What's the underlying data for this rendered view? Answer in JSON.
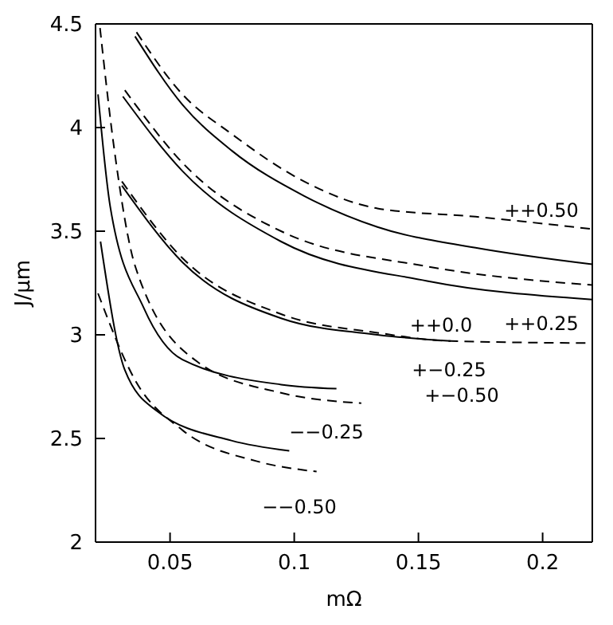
{
  "chart_data": {
    "type": "line",
    "xlabel": "mΩ",
    "ylabel": "J/μm",
    "xlim": [
      0.02,
      0.22
    ],
    "ylim": [
      2,
      4.5
    ],
    "xticks": [
      0.05,
      0.1,
      0.15,
      0.2
    ],
    "yticks": [
      2,
      2.5,
      3,
      3.5,
      4,
      4.5
    ],
    "grid": false,
    "legend": false,
    "marker": "none",
    "series": [
      {
        "color": "#000000",
        "line_style": "solid",
        "x": [
          0.0359,
          0.055,
          0.0747,
          0.104,
          0.1335,
          0.173,
          0.22
        ],
        "values": [
          4.44,
          4.11,
          3.89,
          3.67,
          3.52,
          3.42,
          3.34
        ]
      },
      {
        "color": "#000000",
        "line_style": "dashed",
        "x": [
          0.0365,
          0.055,
          0.0747,
          0.104,
          0.1335,
          0.173,
          0.22
        ],
        "values": [
          4.46,
          4.16,
          3.97,
          3.74,
          3.61,
          3.57,
          3.51
        ]
      },
      {
        "color": "#000000",
        "line_style": "solid",
        "x": [
          0.031,
          0.055,
          0.0947,
          0.1535,
          0.22
        ],
        "values": [
          4.15,
          3.79,
          3.45,
          3.26,
          3.17
        ]
      },
      {
        "color": "#000000",
        "line_style": "dashed",
        "x": [
          0.0318,
          0.055,
          0.0947,
          0.1535,
          0.22
        ],
        "values": [
          4.18,
          3.83,
          3.5,
          3.33,
          3.24
        ]
      },
      {
        "color": "#000000",
        "line_style": "solid",
        "x": [
          0.0306,
          0.055,
          0.0947,
          0.1335,
          0.163
        ],
        "values": [
          3.72,
          3.35,
          3.08,
          3.0,
          2.97
        ]
      },
      {
        "color": "#000000",
        "line_style": "dashed",
        "x": [
          0.0306,
          0.055,
          0.0947,
          0.1335,
          0.163,
          0.22
        ],
        "values": [
          3.74,
          3.37,
          3.1,
          3.01,
          2.97,
          2.96
        ]
      },
      {
        "color": "#000000",
        "line_style": "solid",
        "x": [
          0.021,
          0.0259,
          0.0394,
          0.055,
          0.0947,
          0.117
        ],
        "values": [
          4.16,
          3.62,
          3.13,
          2.88,
          2.76,
          2.74
        ]
      },
      {
        "color": "#000000",
        "line_style": "dashed",
        "x": [
          0.0218,
          0.0276,
          0.036,
          0.061,
          0.0947,
          0.127
        ],
        "values": [
          4.48,
          3.89,
          3.33,
          2.87,
          2.72,
          2.67
        ]
      },
      {
        "color": "#000000",
        "line_style": "solid",
        "x": [
          0.022,
          0.0318,
          0.045,
          0.0747,
          0.098
        ],
        "values": [
          3.45,
          2.83,
          2.63,
          2.49,
          2.44
        ]
      },
      {
        "color": "#000000",
        "line_style": "dashed",
        "x": [
          0.021,
          0.036,
          0.055,
          0.085,
          0.109
        ],
        "values": [
          3.2,
          2.78,
          2.54,
          2.39,
          2.34
        ]
      }
    ],
    "annotations": [
      "++0.50",
      "++0.25",
      "++0.0",
      "+−0.25",
      "+−0.50",
      "−−0.25",
      "−−0.50"
    ]
  }
}
